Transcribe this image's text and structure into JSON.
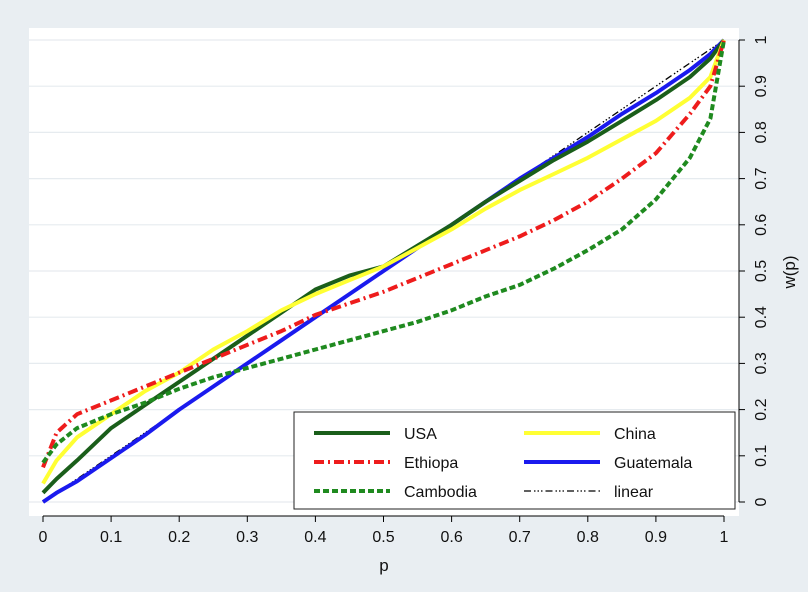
{
  "chart_data": {
    "type": "line",
    "xlabel": "p",
    "ylabel": "w(p)",
    "xlim": [
      0,
      1
    ],
    "ylim": [
      0,
      1
    ],
    "x_ticks": [
      0,
      0.1,
      0.2,
      0.3,
      0.4,
      0.5,
      0.6,
      0.7,
      0.8,
      0.9,
      1
    ],
    "x_tick_labels": [
      "0",
      "0.1",
      "0.2",
      "0.3",
      "0.4",
      "0.5",
      "0.6",
      "0.7",
      "0.8",
      "0.9",
      "1"
    ],
    "y_ticks": [
      0,
      0.1,
      0.2,
      0.3,
      0.4,
      0.5,
      0.6,
      0.7,
      0.8,
      0.9,
      1
    ],
    "y_tick_labels": [
      "0",
      "0.1",
      "0.2",
      "0.3",
      "0.4",
      "0.5",
      "0.6",
      "0.7",
      "0.8",
      "0.9",
      "1"
    ],
    "y_axis_side": "right",
    "grid": true,
    "legend_position": "bottom-right",
    "x": [
      0,
      0.02,
      0.05,
      0.1,
      0.15,
      0.2,
      0.25,
      0.3,
      0.35,
      0.4,
      0.45,
      0.5,
      0.55,
      0.6,
      0.65,
      0.7,
      0.75,
      0.8,
      0.85,
      0.9,
      0.95,
      0.98,
      1
    ],
    "series": [
      {
        "name": "USA",
        "color": "#1a5e1a",
        "dash": "solid",
        "values": [
          0.02,
          0.05,
          0.09,
          0.16,
          0.21,
          0.26,
          0.31,
          0.36,
          0.41,
          0.46,
          0.49,
          0.51,
          0.555,
          0.6,
          0.65,
          0.695,
          0.74,
          0.78,
          0.825,
          0.87,
          0.92,
          0.96,
          1.0
        ]
      },
      {
        "name": "China",
        "color": "#ffff33",
        "dash": "solid",
        "values": [
          0.04,
          0.09,
          0.14,
          0.19,
          0.24,
          0.28,
          0.33,
          0.37,
          0.415,
          0.45,
          0.48,
          0.51,
          0.55,
          0.59,
          0.635,
          0.675,
          0.71,
          0.745,
          0.785,
          0.825,
          0.875,
          0.92,
          1.0
        ]
      },
      {
        "name": "Ethiopa",
        "color": "#ee1c1c",
        "dash": "dash",
        "values": [
          0.075,
          0.15,
          0.19,
          0.22,
          0.25,
          0.28,
          0.31,
          0.34,
          0.37,
          0.405,
          0.43,
          0.455,
          0.485,
          0.515,
          0.545,
          0.575,
          0.61,
          0.65,
          0.7,
          0.755,
          0.84,
          0.9,
          1.0
        ]
      },
      {
        "name": "Guatemala",
        "color": "#1a1aee",
        "dash": "solid",
        "values": [
          0.0,
          0.02,
          0.045,
          0.095,
          0.145,
          0.2,
          0.25,
          0.3,
          0.35,
          0.4,
          0.45,
          0.5,
          0.55,
          0.6,
          0.65,
          0.7,
          0.745,
          0.79,
          0.84,
          0.885,
          0.935,
          0.97,
          1.0
        ]
      },
      {
        "name": "Cambodia",
        "color": "#1f8a1f",
        "dash": "dot",
        "values": [
          0.085,
          0.125,
          0.16,
          0.19,
          0.215,
          0.245,
          0.27,
          0.29,
          0.31,
          0.33,
          0.35,
          0.37,
          0.39,
          0.415,
          0.445,
          0.47,
          0.505,
          0.545,
          0.59,
          0.655,
          0.745,
          0.83,
          1.0
        ]
      },
      {
        "name": "linear",
        "color": "#000000",
        "dash": "dashdot",
        "values": [
          0.0,
          0.02,
          0.05,
          0.1,
          0.15,
          0.2,
          0.25,
          0.3,
          0.35,
          0.4,
          0.45,
          0.5,
          0.55,
          0.6,
          0.65,
          0.7,
          0.75,
          0.8,
          0.85,
          0.9,
          0.95,
          0.98,
          1.0
        ]
      }
    ]
  }
}
